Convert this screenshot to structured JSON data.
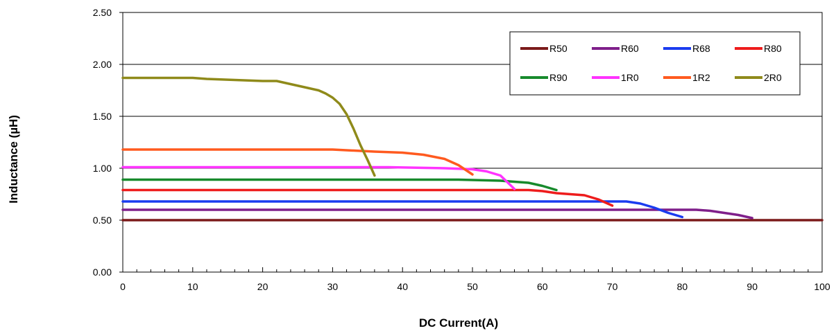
{
  "chart_data": {
    "type": "line",
    "title": "",
    "xlabel": "DC Current(A)",
    "ylabel": "Inductance (µH)",
    "xlim": [
      0,
      100
    ],
    "ylim": [
      0,
      2.5
    ],
    "x_ticks": [
      0,
      10,
      20,
      30,
      40,
      50,
      60,
      70,
      80,
      90,
      100
    ],
    "x_tick_labels": [
      "0",
      "10",
      "20",
      "30",
      "40",
      "50",
      "60",
      "70",
      "80",
      "90",
      "100"
    ],
    "y_ticks": [
      0,
      0.5,
      1,
      1.5,
      2,
      2.5
    ],
    "y_tick_labels": [
      "0.00",
      "0.50",
      "1.00",
      "1.50",
      "2.00",
      "2.50"
    ],
    "grid": "horizontal",
    "legend_position": "top-right",
    "series": [
      {
        "name": "R50",
        "color": "#7b1a1a",
        "points": [
          [
            0,
            0.5
          ],
          [
            100,
            0.5
          ]
        ]
      },
      {
        "name": "R60",
        "color": "#7f1f8a",
        "points": [
          [
            0,
            0.6
          ],
          [
            82,
            0.6
          ],
          [
            84,
            0.59
          ],
          [
            86,
            0.57
          ],
          [
            88,
            0.55
          ],
          [
            90,
            0.52
          ]
        ]
      },
      {
        "name": "R68",
        "color": "#1a3cf0",
        "points": [
          [
            0,
            0.68
          ],
          [
            72,
            0.68
          ],
          [
            74,
            0.66
          ],
          [
            76,
            0.62
          ],
          [
            78,
            0.57
          ],
          [
            80,
            0.53
          ]
        ]
      },
      {
        "name": "R80",
        "color": "#ee1c1c",
        "points": [
          [
            0,
            0.79
          ],
          [
            58,
            0.79
          ],
          [
            60,
            0.78
          ],
          [
            62,
            0.76
          ],
          [
            64,
            0.75
          ],
          [
            66,
            0.74
          ],
          [
            68,
            0.7
          ],
          [
            70,
            0.64
          ]
        ]
      },
      {
        "name": "R90",
        "color": "#178a2c",
        "points": [
          [
            0,
            0.89
          ],
          [
            48,
            0.89
          ],
          [
            54,
            0.88
          ],
          [
            58,
            0.86
          ],
          [
            60,
            0.83
          ],
          [
            62,
            0.79
          ]
        ]
      },
      {
        "name": "1R0",
        "color": "#ff33ff",
        "points": [
          [
            0,
            1.01
          ],
          [
            38,
            1.01
          ],
          [
            46,
            1.0
          ],
          [
            50,
            0.99
          ],
          [
            52,
            0.97
          ],
          [
            54,
            0.93
          ],
          [
            56,
            0.8
          ]
        ]
      },
      {
        "name": "1R2",
        "color": "#ff5a1f",
        "points": [
          [
            0,
            1.18
          ],
          [
            30,
            1.18
          ],
          [
            36,
            1.16
          ],
          [
            40,
            1.15
          ],
          [
            43,
            1.13
          ],
          [
            46,
            1.09
          ],
          [
            48,
            1.03
          ],
          [
            50,
            0.94
          ]
        ]
      },
      {
        "name": "2R0",
        "color": "#8f8a1a",
        "points": [
          [
            0,
            1.87
          ],
          [
            10,
            1.87
          ],
          [
            12,
            1.86
          ],
          [
            16,
            1.85
          ],
          [
            20,
            1.84
          ],
          [
            22,
            1.84
          ],
          [
            24,
            1.81
          ],
          [
            26,
            1.78
          ],
          [
            28,
            1.75
          ],
          [
            29,
            1.72
          ],
          [
            30,
            1.68
          ],
          [
            31,
            1.62
          ],
          [
            32,
            1.52
          ],
          [
            33,
            1.38
          ],
          [
            34,
            1.22
          ],
          [
            35,
            1.08
          ],
          [
            36,
            0.93
          ]
        ]
      }
    ]
  }
}
